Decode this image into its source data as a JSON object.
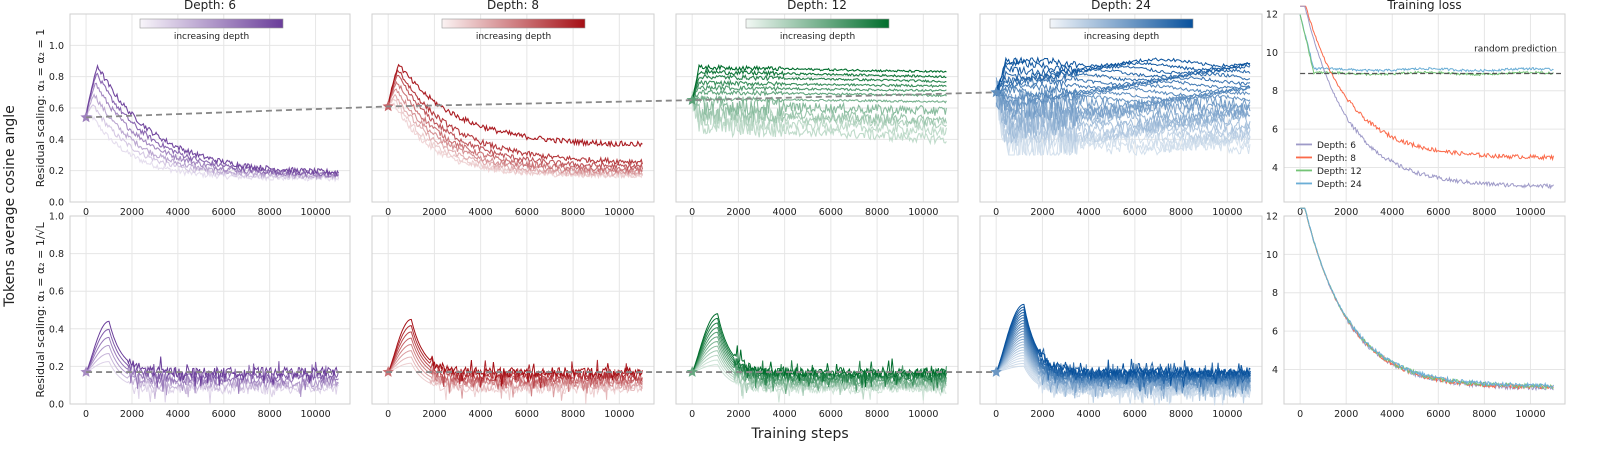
{
  "figure": {
    "y_axis_label": "Tokens average cosine angle",
    "x_axis_label": "Training steps",
    "row_labels": [
      "Residual scaling: α₁ = α₂ = 1",
      "Residual scaling: α₁ = α₂ = 1/√L"
    ],
    "colorbar_label": "increasing depth"
  },
  "colors": {
    "depth_6": "#6a3d9a",
    "depth_8": "#a50f15",
    "depth_12": "#006d2c",
    "depth_24": "#08519c",
    "loss_6": "#9e9ac8",
    "loss_8": "#fb6a4a",
    "loss_12": "#74c476",
    "loss_24": "#6baed6",
    "dashed": "#888888"
  },
  "chart_data": [
    {
      "type": "line",
      "panel": "depth6-row1",
      "title": "Depth: 6",
      "depth": 6,
      "xlim": [
        -700,
        11500
      ],
      "ylim": [
        0,
        1.2
      ],
      "xticks": [
        "0",
        "2000",
        "4000",
        "6000",
        "8000",
        "10000"
      ],
      "yticks": [
        "0.0",
        "0.2",
        "0.4",
        "0.6",
        "0.8",
        "1.0"
      ],
      "start_value": 0.54,
      "series": [
        {
          "peak": 0.87,
          "peak_x": 500,
          "final": 0.18
        },
        {
          "peak": 0.82,
          "peak_x": 450,
          "final": 0.17
        },
        {
          "peak": 0.76,
          "peak_x": 400,
          "final": 0.17
        },
        {
          "peak": 0.69,
          "peak_x": 350,
          "final": 0.16
        },
        {
          "peak": 0.62,
          "peak_x": 300,
          "final": 0.16
        },
        {
          "peak": 0.55,
          "peak_x": 250,
          "final": 0.15
        }
      ]
    },
    {
      "type": "line",
      "panel": "depth8-row1",
      "title": "Depth: 8",
      "depth": 8,
      "xlim": [
        -700,
        11500
      ],
      "ylim": [
        0,
        1.2
      ],
      "xticks": [
        "0",
        "2000",
        "4000",
        "6000",
        "8000",
        "10000"
      ],
      "start_value": 0.61,
      "series": [
        {
          "peak": 0.88,
          "peak_x": 450,
          "final": 0.36
        },
        {
          "peak": 0.85,
          "peak_x": 420,
          "final": 0.25
        },
        {
          "peak": 0.81,
          "peak_x": 400,
          "final": 0.22
        },
        {
          "peak": 0.77,
          "peak_x": 370,
          "final": 0.2
        },
        {
          "peak": 0.73,
          "peak_x": 340,
          "final": 0.19
        },
        {
          "peak": 0.69,
          "peak_x": 310,
          "final": 0.18
        },
        {
          "peak": 0.66,
          "peak_x": 280,
          "final": 0.17
        },
        {
          "peak": 0.63,
          "peak_x": 250,
          "final": 0.17
        }
      ]
    },
    {
      "type": "line",
      "panel": "depth12-row1",
      "title": "Depth: 12",
      "depth": 12,
      "xlim": [
        -700,
        11500
      ],
      "ylim": [
        0,
        1.2
      ],
      "xticks": [
        "0",
        "2000",
        "4000",
        "6000",
        "8000",
        "10000"
      ],
      "start_value": 0.65,
      "series": [
        {
          "level": 0.86,
          "final": 0.83
        },
        {
          "level": 0.83,
          "final": 0.8
        },
        {
          "level": 0.8,
          "final": 0.77
        },
        {
          "level": 0.76,
          "final": 0.74
        },
        {
          "level": 0.73,
          "final": 0.71
        },
        {
          "level": 0.7,
          "final": 0.68
        },
        {
          "level": 0.66,
          "final": 0.64
        },
        {
          "level": 0.62,
          "final": 0.58
        },
        {
          "level": 0.58,
          "final": 0.52
        },
        {
          "level": 0.55,
          "final": 0.5
        },
        {
          "level": 0.52,
          "final": 0.45
        },
        {
          "level": 0.49,
          "final": 0.4
        }
      ]
    },
    {
      "type": "line",
      "panel": "depth24-row1",
      "title": "Depth: 24",
      "depth": 24,
      "xlim": [
        -700,
        11500
      ],
      "ylim": [
        0,
        1.2
      ],
      "xticks": [
        "0",
        "2000",
        "4000",
        "6000",
        "8000",
        "10000"
      ],
      "start_value": 0.7,
      "series_count": 24,
      "level_range": [
        0.35,
        0.89
      ]
    },
    {
      "type": "line",
      "panel": "loss-row1",
      "title": "Training loss",
      "xlim": [
        -700,
        11500
      ],
      "ylim": [
        2.2,
        12
      ],
      "xticks": [
        "0",
        "2000",
        "4000",
        "6000",
        "8000",
        "10000"
      ],
      "yticks": [
        "4",
        "6",
        "8",
        "10",
        "12"
      ],
      "annotation": "random prediction",
      "random_prediction": 8.9,
      "legend": [
        "Depth: 6",
        "Depth: 8",
        "Depth: 12",
        "Depth: 24"
      ],
      "series": [
        {
          "name": "Depth: 6",
          "final": 3.0
        },
        {
          "name": "Depth: 8",
          "final": 4.5
        },
        {
          "name": "Depth: 12",
          "final": 8.9
        },
        {
          "name": "Depth: 24",
          "final": 9.1
        }
      ]
    },
    {
      "type": "line",
      "panel": "depth6-row2",
      "depth": 6,
      "xlim": [
        -700,
        11500
      ],
      "ylim": [
        0,
        1.0
      ],
      "xticks": [
        "0",
        "2000",
        "4000",
        "6000",
        "8000",
        "10000"
      ],
      "yticks": [
        "0.0",
        "0.2",
        "0.4",
        "0.6",
        "0.8",
        "1.0"
      ],
      "start_value": 0.17,
      "peak": 0.44,
      "peak_x": 1000,
      "final_range": [
        0.08,
        0.17
      ]
    },
    {
      "type": "line",
      "panel": "depth8-row2",
      "depth": 8,
      "xlim": [
        -700,
        11500
      ],
      "ylim": [
        0,
        1.0
      ],
      "xticks": [
        "0",
        "2000",
        "4000",
        "6000",
        "8000",
        "10000"
      ],
      "start_value": 0.17,
      "peak": 0.45,
      "peak_x": 1000,
      "final_range": [
        0.08,
        0.17
      ]
    },
    {
      "type": "line",
      "panel": "depth12-row2",
      "depth": 12,
      "xlim": [
        -700,
        11500
      ],
      "ylim": [
        0,
        1.0
      ],
      "xticks": [
        "0",
        "2000",
        "4000",
        "6000",
        "8000",
        "10000"
      ],
      "start_value": 0.17,
      "peak": 0.48,
      "peak_x": 1100,
      "final_range": [
        0.08,
        0.17
      ]
    },
    {
      "type": "line",
      "panel": "depth24-row2",
      "depth": 24,
      "xlim": [
        -700,
        11500
      ],
      "ylim": [
        0,
        1.0
      ],
      "xticks": [
        "0",
        "2000",
        "4000",
        "6000",
        "8000",
        "10000"
      ],
      "start_value": 0.17,
      "peak": 0.53,
      "peak_x": 1200,
      "final_range": [
        0.06,
        0.17
      ]
    },
    {
      "type": "line",
      "panel": "loss-row2",
      "xlim": [
        -700,
        11500
      ],
      "ylim": [
        2.2,
        12
      ],
      "xticks": [
        "0",
        "2000",
        "4000",
        "6000",
        "8000",
        "10000"
      ],
      "yticks": [
        "4",
        "6",
        "8",
        "10",
        "12"
      ],
      "final": 3.0
    }
  ]
}
